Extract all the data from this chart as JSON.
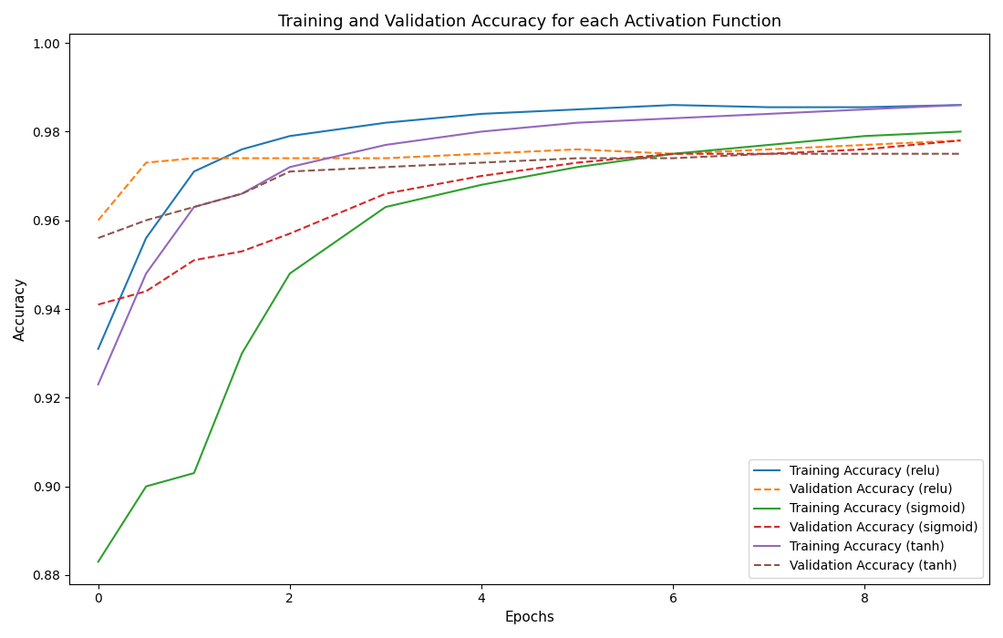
{
  "title": "Training and Validation Accuracy for each Activation Function",
  "xlabel": "Epochs",
  "ylabel": "Accuracy",
  "ylim": [
    0.878,
    1.002
  ],
  "xlim": [
    -0.3,
    9.3
  ],
  "series": [
    {
      "key": "train_relu",
      "x": [
        0,
        0.5,
        1,
        1.5,
        2,
        3,
        4,
        5,
        6,
        7,
        8,
        9
      ],
      "y": [
        0.931,
        0.956,
        0.971,
        0.976,
        0.979,
        0.982,
        0.984,
        0.985,
        0.986,
        0.9855,
        0.9855,
        0.986
      ],
      "color": "#1f77b4",
      "linestyle": "-",
      "label": "Training Accuracy (relu)",
      "linewidth": 1.5
    },
    {
      "key": "val_relu",
      "x": [
        0,
        0.5,
        1,
        1.5,
        2,
        3,
        4,
        5,
        6,
        7,
        8,
        9
      ],
      "y": [
        0.96,
        0.973,
        0.974,
        0.974,
        0.974,
        0.974,
        0.975,
        0.976,
        0.975,
        0.976,
        0.977,
        0.978
      ],
      "color": "#ff7f0e",
      "linestyle": "--",
      "label": "Validation Accuracy (relu)",
      "linewidth": 1.5
    },
    {
      "key": "train_sigmoid",
      "x": [
        0,
        0.5,
        1,
        1.5,
        2,
        3,
        4,
        5,
        6,
        7,
        8,
        9
      ],
      "y": [
        0.883,
        0.9,
        0.903,
        0.93,
        0.948,
        0.963,
        0.968,
        0.972,
        0.975,
        0.977,
        0.979,
        0.98
      ],
      "color": "#2ca02c",
      "linestyle": "-",
      "label": "Training Accuracy (sigmoid)",
      "linewidth": 1.5
    },
    {
      "key": "val_sigmoid",
      "x": [
        0,
        0.5,
        1,
        1.5,
        2,
        3,
        4,
        5,
        6,
        7,
        8,
        9
      ],
      "y": [
        0.941,
        0.944,
        0.951,
        0.953,
        0.957,
        0.966,
        0.97,
        0.973,
        0.975,
        0.975,
        0.976,
        0.978
      ],
      "color": "#d62728",
      "linestyle": "--",
      "label": "Validation Accuracy (sigmoid)",
      "linewidth": 1.5
    },
    {
      "key": "train_tanh",
      "x": [
        0,
        0.5,
        1,
        1.5,
        2,
        3,
        4,
        5,
        6,
        7,
        8,
        9
      ],
      "y": [
        0.923,
        0.948,
        0.963,
        0.966,
        0.972,
        0.977,
        0.98,
        0.982,
        0.983,
        0.984,
        0.985,
        0.986
      ],
      "color": "#9467bd",
      "linestyle": "-",
      "label": "Training Accuracy (tanh)",
      "linewidth": 1.5
    },
    {
      "key": "val_tanh",
      "x": [
        0,
        0.5,
        1,
        1.5,
        2,
        3,
        4,
        5,
        6,
        7,
        8,
        9
      ],
      "y": [
        0.956,
        0.96,
        0.963,
        0.966,
        0.971,
        0.972,
        0.973,
        0.974,
        0.974,
        0.975,
        0.975,
        0.975
      ],
      "color": "#8c564b",
      "linestyle": "--",
      "label": "Validation Accuracy (tanh)",
      "linewidth": 1.5
    }
  ],
  "legend_loc": "lower right",
  "title_fontsize": 13,
  "label_fontsize": 11,
  "tick_fontsize": 10,
  "legend_fontsize": 10,
  "yticks": [
    0.88,
    0.9,
    0.92,
    0.94,
    0.96,
    0.98,
    1.0
  ],
  "xticks": [
    0,
    2,
    4,
    6,
    8
  ],
  "figsize": [
    11.0,
    7.0
  ],
  "dpi": 100
}
